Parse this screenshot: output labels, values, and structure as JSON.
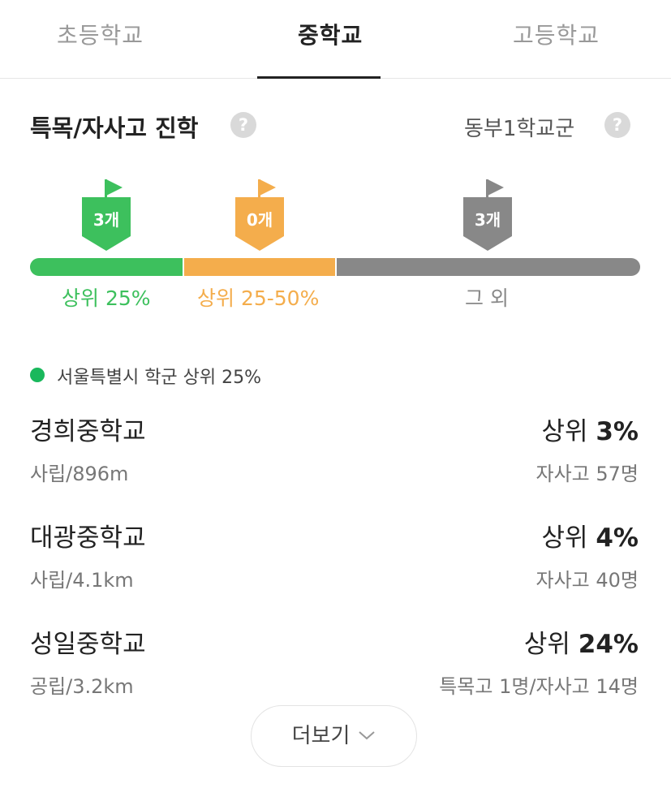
{
  "tabs": [
    {
      "label": "초등학교",
      "active": false
    },
    {
      "label": "중학교",
      "active": true
    },
    {
      "label": "고등학교",
      "active": false
    }
  ],
  "section": {
    "title": "특목/자사고 진학",
    "help_icon": "question-circle-icon",
    "district": "동부1학교군"
  },
  "tiers": [
    {
      "count": "3개",
      "label": "상위 25%",
      "color": "#3dc05d",
      "label_color": "#3dc05d"
    },
    {
      "count": "0개",
      "label": "상위 25-50%",
      "color": "#f4ad4c",
      "label_color": "#f4ad4c"
    },
    {
      "count": "3개",
      "label": "그 외",
      "color": "#888888",
      "label_color": "#888888"
    }
  ],
  "legend": {
    "text": "서울특별시 학군 상위 25%",
    "color": "#19b85c"
  },
  "schools": [
    {
      "name": "경희중학교",
      "meta": "사립/896m",
      "rank_prefix": "상위 ",
      "rank_value": "3%",
      "stat": "자사고 57명"
    },
    {
      "name": "대광중학교",
      "meta": "사립/4.1km",
      "rank_prefix": "상위 ",
      "rank_value": "4%",
      "stat": "자사고 40명"
    },
    {
      "name": "성일중학교",
      "meta": "공립/3.2km",
      "rank_prefix": "상위 ",
      "rank_value": "24%",
      "stat": "특목고 1명/자사고 14명"
    }
  ],
  "more_button": {
    "label": "더보기",
    "icon": "chevron-down-icon"
  }
}
